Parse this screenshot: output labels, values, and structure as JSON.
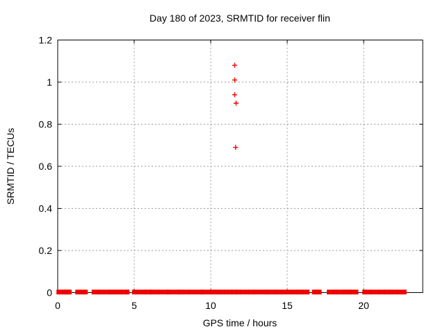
{
  "window": {
    "title": "Day 180 of 2023, SRMTID for receiver flin"
  },
  "colors": {
    "points": "#ee0000",
    "grid": "#9a9a9a",
    "axis": "#000000",
    "background": "#ffffff",
    "text": "#000000"
  },
  "chart_data": {
    "type": "scatter",
    "title": "Day 180 of 2023, SRMTID for receiver flin",
    "xlabel": "GPS time / hours",
    "ylabel": "SRMTID / TECUs",
    "xlim": [
      0,
      23.86
    ],
    "ylim": [
      0,
      1.2
    ],
    "xticks": [
      0,
      5,
      10,
      15,
      20
    ],
    "xtick_labels": [
      "0",
      "5",
      "10",
      "15",
      "20"
    ],
    "yticks": [
      0,
      0.2,
      0.4,
      0.6,
      0.8,
      1,
      1.2
    ],
    "ytick_labels": [
      "0",
      "0.2",
      "0.4",
      "0.6",
      "0.8",
      "1",
      "1.2"
    ],
    "grid": true,
    "grid_style": "dashed",
    "legend": "none",
    "marker": "plus",
    "series_name": "SRMTID",
    "outlier_points": [
      {
        "x": 11.57,
        "y": 1.08
      },
      {
        "x": 11.57,
        "y": 1.01
      },
      {
        "x": 11.57,
        "y": 0.94
      },
      {
        "x": 11.66,
        "y": 0.9
      },
      {
        "x": 11.63,
        "y": 0.69
      }
    ],
    "baseline_value": 0,
    "baseline_segments": [
      [
        0.0,
        0.1
      ],
      [
        0.17,
        0.29
      ],
      [
        0.35,
        0.44
      ],
      [
        0.47,
        0.56
      ],
      [
        0.59,
        0.65
      ],
      [
        0.68,
        0.83
      ],
      [
        1.23,
        1.88
      ],
      [
        2.3,
        2.66
      ],
      [
        2.71,
        3.4
      ],
      [
        3.45,
        3.6
      ],
      [
        3.7,
        3.74
      ],
      [
        3.84,
        3.89
      ],
      [
        3.99,
        4.04
      ],
      [
        4.14,
        4.18
      ],
      [
        4.26,
        4.42
      ],
      [
        4.49,
        4.53
      ],
      [
        4.56,
        4.61
      ],
      [
        4.94,
        5.6
      ],
      [
        5.67,
        5.72
      ],
      [
        5.79,
        5.97
      ],
      [
        6.04,
        6.08
      ],
      [
        6.11,
        6.15
      ],
      [
        6.29,
        6.58
      ],
      [
        6.64,
        6.88
      ],
      [
        7.04,
        7.09
      ],
      [
        7.17,
        7.22
      ],
      [
        7.3,
        7.79
      ],
      [
        7.89,
        7.94
      ],
      [
        8.0,
        8.12
      ],
      [
        8.2,
        8.58
      ],
      [
        8.65,
        9.33
      ],
      [
        9.4,
        9.45
      ],
      [
        9.5,
        9.6
      ],
      [
        9.76,
        10.0
      ],
      [
        10.08,
        10.25
      ],
      [
        10.31,
        10.4
      ],
      [
        10.49,
        10.54
      ],
      [
        10.64,
        10.88
      ],
      [
        10.95,
        11.1
      ],
      [
        11.18,
        11.35
      ],
      [
        11.42,
        11.64
      ],
      [
        11.7,
        11.92
      ],
      [
        11.99,
        12.44
      ],
      [
        12.51,
        12.82
      ],
      [
        12.9,
        13.08
      ],
      [
        13.2,
        13.32
      ],
      [
        13.45,
        13.55
      ],
      [
        13.63,
        13.73
      ],
      [
        13.77,
        14.1
      ],
      [
        14.2,
        14.3
      ],
      [
        14.38,
        14.65
      ],
      [
        14.71,
        14.92
      ],
      [
        15.05,
        15.29
      ],
      [
        15.38,
        15.56
      ],
      [
        15.64,
        15.74
      ],
      [
        15.83,
        15.97
      ],
      [
        16.05,
        16.38
      ],
      [
        16.7,
        16.8
      ],
      [
        16.85,
        16.98
      ],
      [
        17.04,
        17.17
      ],
      [
        17.67,
        18.02
      ],
      [
        18.08,
        18.23
      ],
      [
        18.3,
        18.6
      ],
      [
        18.66,
        18.75
      ],
      [
        18.84,
        18.97
      ],
      [
        19.03,
        19.15
      ],
      [
        19.2,
        19.35
      ],
      [
        19.45,
        19.57
      ],
      [
        19.99,
        20.05
      ],
      [
        20.17,
        20.41
      ],
      [
        20.5,
        20.95
      ],
      [
        21.05,
        21.38
      ],
      [
        21.44,
        21.65
      ],
      [
        21.73,
        21.82
      ],
      [
        21.92,
        22.1
      ],
      [
        22.2,
        22.29
      ],
      [
        22.44,
        22.53
      ],
      [
        22.62,
        22.72
      ]
    ]
  }
}
